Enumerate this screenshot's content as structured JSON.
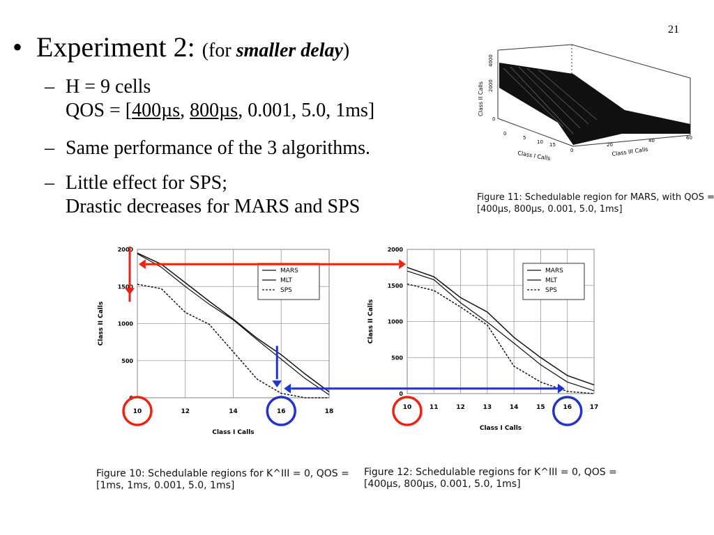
{
  "slide_number": "21",
  "heading": {
    "bullet": "•",
    "title": "Experiment 2:",
    "paren_open": "(for ",
    "emphasis": "smaller delay",
    "paren_close": ")"
  },
  "bullets": [
    {
      "dash": "–",
      "line1": "H = 9 cells",
      "qos_prefix": "QOS = [",
      "qos_u1": "400µs",
      "qos_sep": ", ",
      "qos_u2": "800µs",
      "qos_rest": ", 0.001, 5.0, 1ms]"
    },
    {
      "dash": "–",
      "line1": "Same performance of the 3 algorithms."
    },
    {
      "dash": "–",
      "line1": "Little effect for SPS;",
      "line2": "Drastic decreases for MARS and SPS"
    }
  ],
  "figure11": {
    "caption_line1": "Figure 11: Schedulable region for MARS, with QOS =",
    "caption_line2": "[400µs, 800µs, 0.001, 5.0, 1ms]",
    "z_label": "Class II Calls",
    "x_label": "Class I Calls",
    "y_label": "Class III Calls",
    "z_ticks": [
      "4000",
      "2000",
      "0"
    ],
    "x_ticks": [
      "0",
      "5",
      "10",
      "15"
    ],
    "y_ticks": [
      "0",
      "20",
      "40",
      "60"
    ]
  },
  "figure10": {
    "caption_line1": "Figure 10: Schedulable regions for K^III = 0, QOS =",
    "caption_line2": "[1ms, 1ms, 0.001, 5.0, 1ms]"
  },
  "figure12": {
    "caption_line1": "Figure 12: Schedulable regions for K^III = 0, QOS =",
    "caption_line2": "[400µs, 800µs, 0.001, 5.0, 1ms]"
  },
  "chart_data": [
    {
      "type": "line",
      "xlabel": "Class I Calls",
      "ylabel": "Class II Calls",
      "xlim": [
        10,
        18
      ],
      "ylim": [
        0,
        2000
      ],
      "x_ticks": [
        "10",
        "12",
        "14",
        "16",
        "18"
      ],
      "y_ticks": [
        "0",
        "500",
        "1000",
        "1500",
        "2000"
      ],
      "grid": true,
      "legend": "top-right",
      "series": [
        {
          "name": "MARS",
          "style": "solid",
          "x": [
            10,
            11,
            12,
            13,
            14,
            15,
            16,
            17,
            18
          ],
          "y": [
            1950,
            1800,
            1550,
            1300,
            1060,
            800,
            580,
            320,
            80
          ]
        },
        {
          "name": "MLT",
          "style": "solid",
          "x": [
            10,
            11,
            12,
            13,
            14,
            15,
            16,
            17,
            18
          ],
          "y": [
            1940,
            1760,
            1500,
            1260,
            1050,
            780,
            520,
            260,
            40
          ]
        },
        {
          "name": "SPS",
          "style": "dashed",
          "x": [
            10,
            11,
            12,
            13,
            14,
            15,
            16,
            17,
            18
          ],
          "y": [
            1530,
            1470,
            1150,
            990,
            620,
            250,
            60,
            0,
            0
          ]
        }
      ]
    },
    {
      "type": "line",
      "xlabel": "Class I Calls",
      "ylabel": "Class II Calls",
      "xlim": [
        10,
        17
      ],
      "ylim": [
        0,
        2000
      ],
      "x_ticks": [
        "10",
        "11",
        "12",
        "13",
        "14",
        "15",
        "16",
        "17"
      ],
      "y_ticks": [
        "0",
        "500",
        "1000",
        "1500",
        "2000"
      ],
      "grid": true,
      "legend": "top-right",
      "series": [
        {
          "name": "MARS",
          "style": "solid",
          "x": [
            10,
            11,
            12,
            13,
            14,
            15,
            16,
            17
          ],
          "y": [
            1750,
            1620,
            1330,
            1130,
            780,
            500,
            250,
            120
          ]
        },
        {
          "name": "MLT",
          "style": "solid",
          "x": [
            10,
            11,
            12,
            13,
            14,
            15,
            16,
            17
          ],
          "y": [
            1700,
            1580,
            1260,
            990,
            700,
            400,
            160,
            40
          ]
        },
        {
          "name": "SPS",
          "style": "dashed",
          "x": [
            10,
            11,
            12,
            13,
            14,
            15,
            16,
            17
          ],
          "y": [
            1520,
            1430,
            1200,
            950,
            380,
            160,
            30,
            0
          ]
        }
      ]
    }
  ],
  "annotations": {
    "colors": {
      "red": "#ee2211",
      "blue": "#2233cc"
    },
    "left_circle_label": "10",
    "left_blue_circle_label": "16",
    "right_circle_label": "10",
    "right_blue_circle_label": "16"
  }
}
